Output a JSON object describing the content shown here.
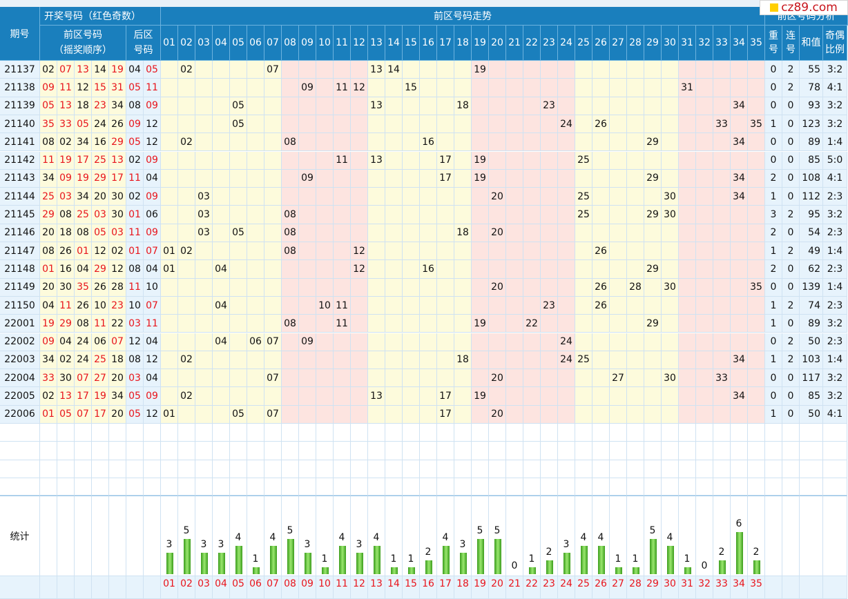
{
  "header": {
    "period_label": "期号",
    "draw_title": "开奖号码（红色奇数）",
    "front_label_1": "前区号码",
    "front_label_2": "（摇奖顺序）",
    "back_label_1": "后区",
    "back_label_2": "号码",
    "trend_title": "前区号码走势",
    "analysis_title": "前区号码分析",
    "repeat_1": "重",
    "repeat_2": "号",
    "consec_1": "连",
    "consec_2": "号",
    "sum_label": "和值",
    "ratio_1": "奇偶",
    "ratio_2": "比例"
  },
  "watermark": "cz89.com",
  "stats_label": "统计",
  "colors": {
    "header_bg": "#1a7fbd",
    "odd_red": "#e8141b",
    "band_yellow": "#fdfbdc",
    "band_pink": "#fde4e0",
    "band_blue": "#e7f3fc",
    "bar_green": "#4caf2a"
  },
  "numbers": [
    "01",
    "02",
    "03",
    "04",
    "05",
    "06",
    "07",
    "08",
    "09",
    "10",
    "11",
    "12",
    "13",
    "14",
    "15",
    "16",
    "17",
    "18",
    "19",
    "20",
    "21",
    "22",
    "23",
    "24",
    "25",
    "26",
    "27",
    "28",
    "29",
    "30",
    "31",
    "32",
    "33",
    "34",
    "35"
  ],
  "rows": [
    {
      "period": "21137",
      "front": [
        "02",
        "07",
        "13",
        "14",
        "19"
      ],
      "back": [
        "04",
        "05"
      ],
      "repeat": "0",
      "consec": "2",
      "sum": "55",
      "ratio": "3:2"
    },
    {
      "period": "21138",
      "front": [
        "09",
        "11",
        "12",
        "15",
        "31"
      ],
      "back": [
        "05",
        "11"
      ],
      "repeat": "0",
      "consec": "2",
      "sum": "78",
      "ratio": "4:1"
    },
    {
      "period": "21139",
      "front": [
        "05",
        "13",
        "18",
        "23",
        "34"
      ],
      "back": [
        "08",
        "09"
      ],
      "repeat": "0",
      "consec": "0",
      "sum": "93",
      "ratio": "3:2"
    },
    {
      "period": "21140",
      "front": [
        "35",
        "33",
        "05",
        "24",
        "26"
      ],
      "back": [
        "09",
        "12"
      ],
      "repeat": "1",
      "consec": "0",
      "sum": "123",
      "ratio": "3:2"
    },
    {
      "period": "21141",
      "front": [
        "08",
        "02",
        "34",
        "16",
        "29"
      ],
      "back": [
        "05",
        "12"
      ],
      "repeat": "0",
      "consec": "0",
      "sum": "89",
      "ratio": "1:4"
    },
    {
      "period": "21142",
      "front": [
        "11",
        "19",
        "17",
        "25",
        "13"
      ],
      "back": [
        "02",
        "09"
      ],
      "repeat": "0",
      "consec": "0",
      "sum": "85",
      "ratio": "5:0"
    },
    {
      "period": "21143",
      "front": [
        "34",
        "09",
        "19",
        "29",
        "17"
      ],
      "back": [
        "11",
        "04"
      ],
      "repeat": "2",
      "consec": "0",
      "sum": "108",
      "ratio": "4:1"
    },
    {
      "period": "21144",
      "front": [
        "25",
        "03",
        "34",
        "20",
        "30"
      ],
      "back": [
        "02",
        "09"
      ],
      "repeat": "1",
      "consec": "0",
      "sum": "112",
      "ratio": "2:3"
    },
    {
      "period": "21145",
      "front": [
        "29",
        "08",
        "25",
        "03",
        "30"
      ],
      "back": [
        "01",
        "06"
      ],
      "repeat": "3",
      "consec": "2",
      "sum": "95",
      "ratio": "3:2"
    },
    {
      "period": "21146",
      "front": [
        "20",
        "18",
        "08",
        "05",
        "03"
      ],
      "back": [
        "11",
        "09"
      ],
      "repeat": "2",
      "consec": "0",
      "sum": "54",
      "ratio": "2:3"
    },
    {
      "period": "21147",
      "front": [
        "08",
        "26",
        "01",
        "12",
        "02"
      ],
      "back": [
        "01",
        "07"
      ],
      "repeat": "1",
      "consec": "2",
      "sum": "49",
      "ratio": "1:4"
    },
    {
      "period": "21148",
      "front": [
        "01",
        "16",
        "04",
        "29",
        "12"
      ],
      "back": [
        "08",
        "04"
      ],
      "repeat": "2",
      "consec": "0",
      "sum": "62",
      "ratio": "2:3"
    },
    {
      "period": "21149",
      "front": [
        "20",
        "30",
        "35",
        "26",
        "28"
      ],
      "back": [
        "11",
        "10"
      ],
      "repeat": "0",
      "consec": "0",
      "sum": "139",
      "ratio": "1:4"
    },
    {
      "period": "21150",
      "front": [
        "04",
        "11",
        "26",
        "10",
        "23"
      ],
      "back": [
        "10",
        "07"
      ],
      "repeat": "1",
      "consec": "2",
      "sum": "74",
      "ratio": "2:3"
    },
    {
      "period": "22001",
      "front": [
        "19",
        "29",
        "08",
        "11",
        "22"
      ],
      "back": [
        "03",
        "11"
      ],
      "repeat": "1",
      "consec": "0",
      "sum": "89",
      "ratio": "3:2"
    },
    {
      "period": "22002",
      "front": [
        "09",
        "04",
        "24",
        "06",
        "07"
      ],
      "back": [
        "12",
        "04"
      ],
      "repeat": "0",
      "consec": "2",
      "sum": "50",
      "ratio": "2:3"
    },
    {
      "period": "22003",
      "front": [
        "34",
        "02",
        "24",
        "25",
        "18"
      ],
      "back": [
        "08",
        "12"
      ],
      "repeat": "1",
      "consec": "2",
      "sum": "103",
      "ratio": "1:4"
    },
    {
      "period": "22004",
      "front": [
        "33",
        "30",
        "07",
        "27",
        "20"
      ],
      "back": [
        "03",
        "04"
      ],
      "repeat": "0",
      "consec": "0",
      "sum": "117",
      "ratio": "3:2"
    },
    {
      "period": "22005",
      "front": [
        "02",
        "13",
        "17",
        "19",
        "34"
      ],
      "back": [
        "05",
        "09"
      ],
      "repeat": "0",
      "consec": "0",
      "sum": "85",
      "ratio": "3:2"
    },
    {
      "period": "22006",
      "front": [
        "01",
        "05",
        "07",
        "17",
        "20"
      ],
      "back": [
        "05",
        "12"
      ],
      "repeat": "1",
      "consec": "0",
      "sum": "50",
      "ratio": "4:1"
    }
  ],
  "chart_data": {
    "type": "bar",
    "title": "统计",
    "categories": [
      "01",
      "02",
      "03",
      "04",
      "05",
      "06",
      "07",
      "08",
      "09",
      "10",
      "11",
      "12",
      "13",
      "14",
      "15",
      "16",
      "17",
      "18",
      "19",
      "20",
      "21",
      "22",
      "23",
      "24",
      "25",
      "26",
      "27",
      "28",
      "29",
      "30",
      "31",
      "32",
      "33",
      "34",
      "35"
    ],
    "values": [
      3,
      5,
      3,
      3,
      4,
      1,
      4,
      5,
      3,
      1,
      4,
      3,
      4,
      1,
      1,
      2,
      4,
      3,
      5,
      5,
      0,
      1,
      2,
      3,
      4,
      4,
      1,
      1,
      5,
      4,
      1,
      0,
      2,
      6,
      2
    ],
    "ylim": [
      0,
      6
    ]
  }
}
